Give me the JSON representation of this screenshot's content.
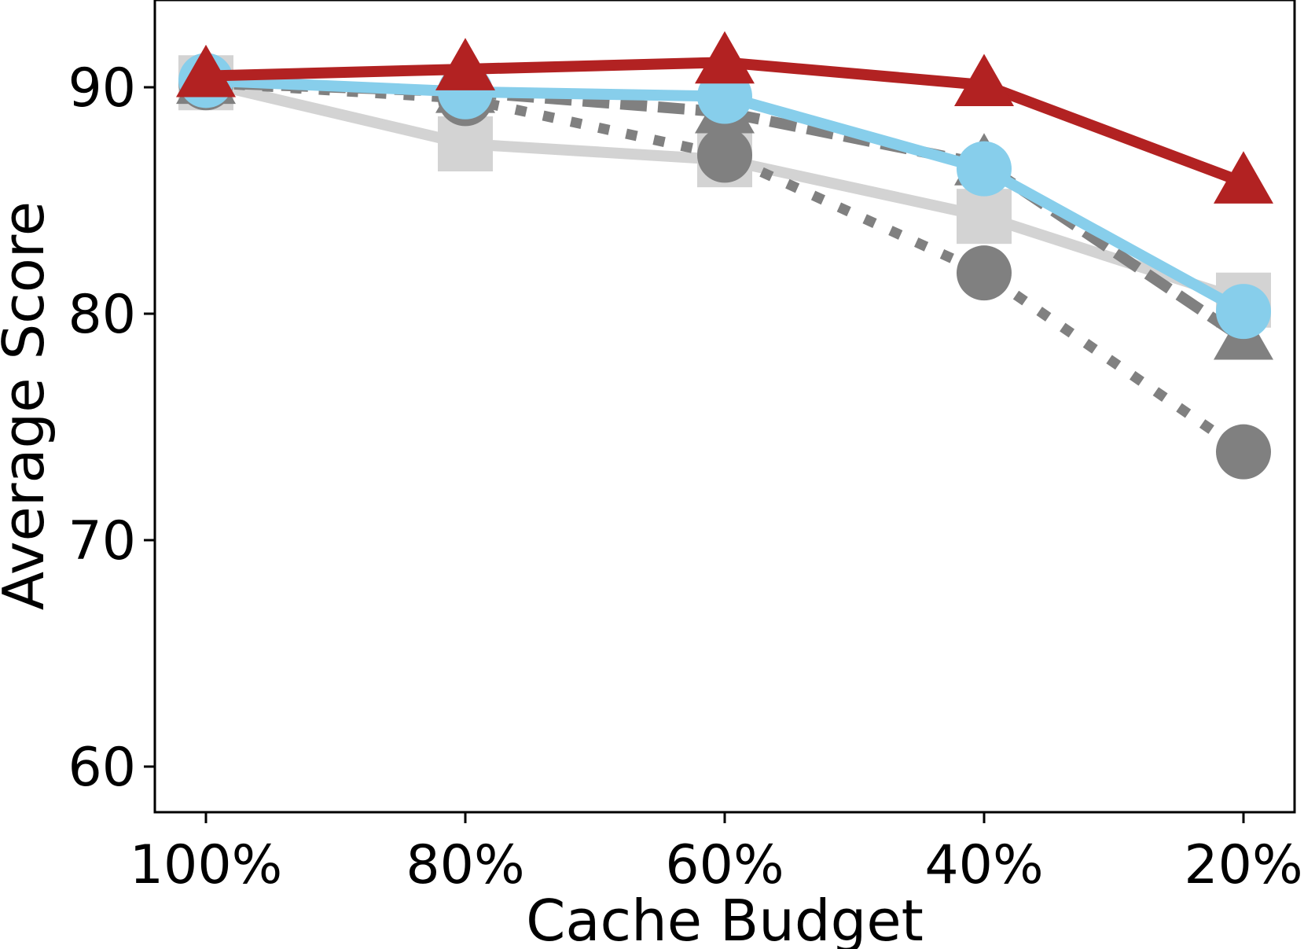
{
  "chart_data": {
    "type": "line",
    "title": "",
    "xlabel": "Cache Budget",
    "ylabel": "Average Score",
    "categories": [
      "100%",
      "80%",
      "60%",
      "40%",
      "20%"
    ],
    "ylim": [
      58,
      94
    ],
    "yticks": [
      60,
      70,
      80,
      90
    ],
    "grid": false,
    "legend": "none",
    "series": [
      {
        "values": [
          90.2,
          87.5,
          86.8,
          84.3,
          80.6
        ],
        "color": "#d3d3d3",
        "marker": "square",
        "line": "solid"
      },
      {
        "values": [
          90.2,
          89.8,
          88.9,
          86.6,
          78.9
        ],
        "color": "#808080",
        "marker": "triangle",
        "line": "dashed"
      },
      {
        "values": [
          90.2,
          89.5,
          87.0,
          81.8,
          73.9
        ],
        "color": "#808080",
        "marker": "circle",
        "line": "dotted"
      },
      {
        "values": [
          90.3,
          89.8,
          89.6,
          86.4,
          80.1
        ],
        "color": "#87ceeb",
        "marker": "circle",
        "line": "solid"
      },
      {
        "values": [
          90.5,
          90.8,
          91.1,
          90.1,
          85.8
        ],
        "color": "#b22222",
        "marker": "triangle",
        "line": "solid"
      }
    ]
  }
}
